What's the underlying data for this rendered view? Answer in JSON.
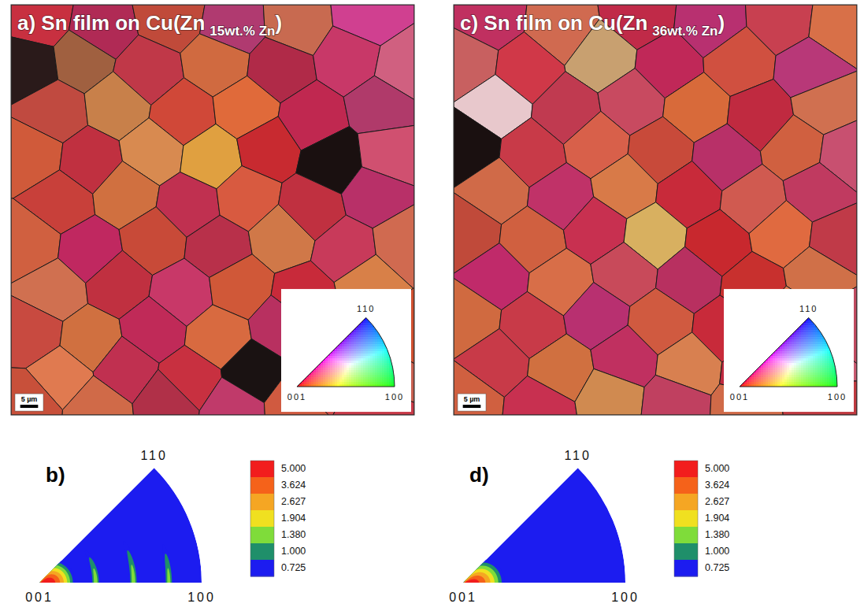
{
  "chart_data": [
    {
      "type": "orientation_map",
      "title": "a) Sn film on Cu(Zn",
      "title_subscript": "15wt.% Zn",
      "title_end": ")",
      "xlim": [
        0,
        113
      ],
      "ylim": [
        0,
        115
      ],
      "tick_labels": false,
      "scale_bar": {
        "value": 5,
        "label": "5 µm"
      },
      "key_labels": [
        "001",
        "100",
        "110"
      ],
      "grains": {
        "x": [
          8,
          25,
          45,
          62,
          80,
          100,
          5,
          20,
          38,
          58,
          75,
          95,
          110,
          12,
          30,
          48,
          66,
          84,
          104,
          6,
          22,
          40,
          56,
          72,
          90,
          106,
          14,
          32,
          50,
          66,
          84,
          102,
          5,
          22,
          40,
          58,
          76,
          94,
          110,
          12,
          30,
          48,
          64,
          82,
          100,
          6,
          22,
          40,
          58,
          76,
          94,
          110,
          14,
          32,
          50,
          68,
          86,
          104,
          5,
          24,
          44,
          62,
          80,
          100
        ],
        "y": [
          4,
          7,
          3,
          6,
          5,
          3,
          17,
          15,
          19,
          16,
          18,
          15,
          18,
          30,
          28,
          31,
          29,
          32,
          28,
          42,
          44,
          41,
          43,
          40,
          44,
          42,
          55,
          53,
          56,
          54,
          57,
          53,
          67,
          69,
          66,
          68,
          65,
          69,
          67,
          80,
          78,
          81,
          79,
          82,
          78,
          92,
          94,
          91,
          93,
          90,
          94,
          92,
          104,
          102,
          105,
          103,
          106,
          102,
          112,
          113,
          111,
          113,
          112,
          113
        ],
        "colors": [
          "#c83040",
          "#b02a55",
          "#c04a3a",
          "#b03a70",
          "#c86a50",
          "#d04090",
          "#2a1a1a",
          "#a06040",
          "#c03848",
          "#d06a40",
          "#b02a48",
          "#c83868",
          "#d06080",
          "#c04a40",
          "#c8804a",
          "#d04838",
          "#e06a3a",
          "#c02850",
          "#b03a6a",
          "#d05a3a",
          "#c03040",
          "#d88a50",
          "#e0a040",
          "#c82a30",
          "#1a1010",
          "#d05070",
          "#c8403a",
          "#d07040",
          "#c03050",
          "#d85a40",
          "#c03040",
          "#b83068",
          "#d06040",
          "#c02860",
          "#c84a38",
          "#b8304a",
          "#d07848",
          "#c83a5a",
          "#d06a50",
          "#d07050",
          "#c03040",
          "#c83868",
          "#d05838",
          "#c82a3a",
          "#d88048",
          "#c84a40",
          "#d07040",
          "#c02a58",
          "#d86a40",
          "#b83060",
          "#cc3a40",
          "#d05030",
          "#e07a50",
          "#c03050",
          "#c83040",
          "#1a1212",
          "#d04a48",
          "#c86050",
          "#c8503a",
          "#d06a48",
          "#b03048",
          "#c03a6a",
          "#d05a40",
          "#c83a48"
        ]
      }
    },
    {
      "type": "inverse_pole_figure",
      "title": "b)",
      "corner_labels": [
        "001",
        "100",
        "110"
      ],
      "peaks": [
        {
          "chi": 0,
          "phi": 0,
          "max": 8,
          "chi_width": 16,
          "phi_width": 60
        },
        {
          "chi": 38,
          "phi": 0,
          "max": 1.6,
          "chi_width": 3,
          "phi_width": 40
        },
        {
          "chi": 60,
          "phi": 0,
          "max": 1.6,
          "chi_width": 2.5,
          "phi_width": 30
        },
        {
          "chi": 77,
          "phi": 0,
          "max": 1.55,
          "chi_width": 2,
          "phi_width": 20
        }
      ],
      "colorbar": {
        "ticks": [
          {
            "value": 5,
            "label": "5.000"
          },
          3.624,
          2.627,
          1.904,
          {
            "value": 1.38,
            "label": "1.380"
          },
          {
            "value": 1,
            "label": "1.000"
          },
          0.725
        ],
        "colors": [
          "#f21d1d",
          "#f5621a",
          "#f5a623",
          "#f0e020",
          "#7fdc3a",
          "#1f8f6a",
          "#1c1cf0"
        ]
      }
    },
    {
      "type": "orientation_map",
      "title": "c) Sn film on Cu(Zn",
      "title_subscript": "36wt.% Zn",
      "title_end": ")",
      "xlim": [
        0,
        113
      ],
      "ylim": [
        0,
        115
      ],
      "tick_labels": false,
      "scale_bar": {
        "value": 5,
        "label": "5 µm"
      },
      "key_labels": [
        "001",
        "100",
        "110"
      ],
      "grains": {
        "x": [
          10,
          30,
          52,
          72,
          92,
          108,
          4,
          20,
          42,
          60,
          80,
          100,
          12,
          32,
          50,
          68,
          86,
          104,
          4,
          22,
          40,
          58,
          76,
          96,
          110,
          12,
          30,
          48,
          66,
          84,
          102,
          4,
          22,
          40,
          56,
          74,
          92,
          108,
          12,
          30,
          48,
          66,
          84,
          102,
          4,
          22,
          40,
          58,
          76,
          94,
          110,
          12,
          30,
          48,
          66,
          84,
          102,
          4,
          24,
          44,
          62,
          82,
          102
        ],
        "y": [
          4,
          6,
          3,
          5,
          4,
          6,
          16,
          18,
          15,
          17,
          16,
          18,
          28,
          30,
          27,
          29,
          31,
          28,
          40,
          42,
          39,
          41,
          43,
          40,
          42,
          52,
          54,
          51,
          53,
          55,
          52,
          64,
          66,
          63,
          65,
          67,
          64,
          66,
          76,
          78,
          75,
          77,
          79,
          76,
          88,
          90,
          87,
          89,
          91,
          88,
          90,
          100,
          102,
          99,
          101,
          103,
          100,
          111,
          113,
          110,
          112,
          113,
          111
        ],
        "colors": [
          "#c03060",
          "#d06a50",
          "#c02a48",
          "#b83070",
          "#c84050",
          "#d87048",
          "#c86060",
          "#d03848",
          "#c8a070",
          "#c02858",
          "#d05040",
          "#b83878",
          "#e8c8cc",
          "#c03a50",
          "#c84a60",
          "#d86a3a",
          "#c02a40",
          "#d07050",
          "#1a1010",
          "#c83a48",
          "#d8604a",
          "#c84a3a",
          "#b83068",
          "#d06040",
          "#c85070",
          "#d06a48",
          "#c03268",
          "#d87a48",
          "#c82a3a",
          "#d05a50",
          "#c03a60",
          "#c04a3a",
          "#d06040",
          "#c83050",
          "#d8b060",
          "#c8282e",
          "#e06a40",
          "#c03a48",
          "#c02a6a",
          "#d86e48",
          "#c84a5a",
          "#b83060",
          "#c8302e",
          "#d07048",
          "#d06a40",
          "#c83a48",
          "#b83070",
          "#d05a40",
          "#c82a3a",
          "#e07a50",
          "#c04a60",
          "#c83a48",
          "#d07040",
          "#c03060",
          "#d88050",
          "#c02a40",
          "#c85a70",
          "#d06040",
          "#c83050",
          "#d08a50",
          "#c04060",
          "#d06a48",
          "#c03a40"
        ]
      }
    },
    {
      "type": "inverse_pole_figure",
      "title": "d)",
      "corner_labels": [
        "001",
        "100",
        "110"
      ],
      "peaks": [
        {
          "chi": 0,
          "phi": 0,
          "max": 7,
          "chi_width": 19,
          "phi_width": 50
        }
      ],
      "colorbar": {
        "ticks": [
          {
            "value": 5,
            "label": "5.000"
          },
          3.624,
          2.627,
          1.904,
          {
            "value": 1.38,
            "label": "1.380"
          },
          {
            "value": 1,
            "label": "1.000"
          },
          0.725
        ],
        "colors": [
          "#f21d1d",
          "#f5621a",
          "#f5a623",
          "#f0e020",
          "#7fdc3a",
          "#1f8f6a",
          "#1c1cf0"
        ]
      }
    }
  ]
}
